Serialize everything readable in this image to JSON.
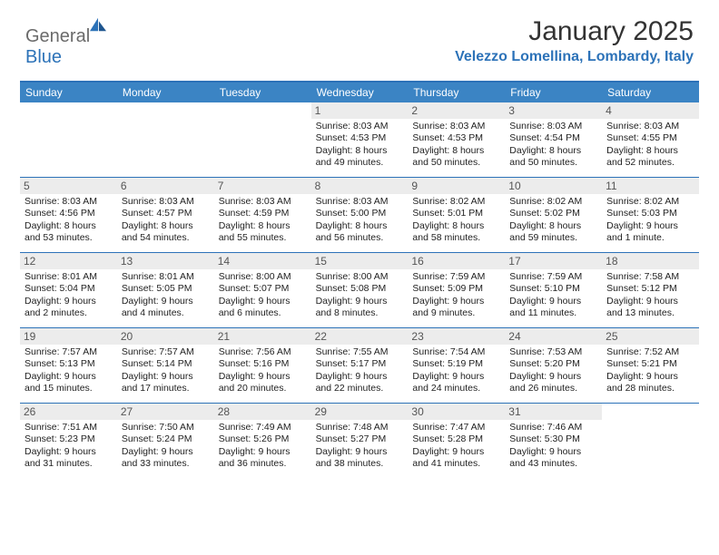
{
  "logo": {
    "general": "General",
    "blue": "Blue"
  },
  "header": {
    "month_title": "January 2025",
    "location": "Velezzo Lomellina, Lombardy, Italy"
  },
  "colors": {
    "brand_blue": "#2c72b8",
    "header_bar": "#3b84c4",
    "daynum_bg": "#ececec",
    "logo_gray": "#6a6a6a"
  },
  "calendar": {
    "day_headers": [
      "Sunday",
      "Monday",
      "Tuesday",
      "Wednesday",
      "Thursday",
      "Friday",
      "Saturday"
    ],
    "first_weekday_index": 3,
    "days": [
      {
        "n": 1,
        "sunrise": "8:03 AM",
        "sunset": "4:53 PM",
        "daylight": "8 hours and 49 minutes."
      },
      {
        "n": 2,
        "sunrise": "8:03 AM",
        "sunset": "4:53 PM",
        "daylight": "8 hours and 50 minutes."
      },
      {
        "n": 3,
        "sunrise": "8:03 AM",
        "sunset": "4:54 PM",
        "daylight": "8 hours and 50 minutes."
      },
      {
        "n": 4,
        "sunrise": "8:03 AM",
        "sunset": "4:55 PM",
        "daylight": "8 hours and 52 minutes."
      },
      {
        "n": 5,
        "sunrise": "8:03 AM",
        "sunset": "4:56 PM",
        "daylight": "8 hours and 53 minutes."
      },
      {
        "n": 6,
        "sunrise": "8:03 AM",
        "sunset": "4:57 PM",
        "daylight": "8 hours and 54 minutes."
      },
      {
        "n": 7,
        "sunrise": "8:03 AM",
        "sunset": "4:59 PM",
        "daylight": "8 hours and 55 minutes."
      },
      {
        "n": 8,
        "sunrise": "8:03 AM",
        "sunset": "5:00 PM",
        "daylight": "8 hours and 56 minutes."
      },
      {
        "n": 9,
        "sunrise": "8:02 AM",
        "sunset": "5:01 PM",
        "daylight": "8 hours and 58 minutes."
      },
      {
        "n": 10,
        "sunrise": "8:02 AM",
        "sunset": "5:02 PM",
        "daylight": "8 hours and 59 minutes."
      },
      {
        "n": 11,
        "sunrise": "8:02 AM",
        "sunset": "5:03 PM",
        "daylight": "9 hours and 1 minute."
      },
      {
        "n": 12,
        "sunrise": "8:01 AM",
        "sunset": "5:04 PM",
        "daylight": "9 hours and 2 minutes."
      },
      {
        "n": 13,
        "sunrise": "8:01 AM",
        "sunset": "5:05 PM",
        "daylight": "9 hours and 4 minutes."
      },
      {
        "n": 14,
        "sunrise": "8:00 AM",
        "sunset": "5:07 PM",
        "daylight": "9 hours and 6 minutes."
      },
      {
        "n": 15,
        "sunrise": "8:00 AM",
        "sunset": "5:08 PM",
        "daylight": "9 hours and 8 minutes."
      },
      {
        "n": 16,
        "sunrise": "7:59 AM",
        "sunset": "5:09 PM",
        "daylight": "9 hours and 9 minutes."
      },
      {
        "n": 17,
        "sunrise": "7:59 AM",
        "sunset": "5:10 PM",
        "daylight": "9 hours and 11 minutes."
      },
      {
        "n": 18,
        "sunrise": "7:58 AM",
        "sunset": "5:12 PM",
        "daylight": "9 hours and 13 minutes."
      },
      {
        "n": 19,
        "sunrise": "7:57 AM",
        "sunset": "5:13 PM",
        "daylight": "9 hours and 15 minutes."
      },
      {
        "n": 20,
        "sunrise": "7:57 AM",
        "sunset": "5:14 PM",
        "daylight": "9 hours and 17 minutes."
      },
      {
        "n": 21,
        "sunrise": "7:56 AM",
        "sunset": "5:16 PM",
        "daylight": "9 hours and 20 minutes."
      },
      {
        "n": 22,
        "sunrise": "7:55 AM",
        "sunset": "5:17 PM",
        "daylight": "9 hours and 22 minutes."
      },
      {
        "n": 23,
        "sunrise": "7:54 AM",
        "sunset": "5:19 PM",
        "daylight": "9 hours and 24 minutes."
      },
      {
        "n": 24,
        "sunrise": "7:53 AM",
        "sunset": "5:20 PM",
        "daylight": "9 hours and 26 minutes."
      },
      {
        "n": 25,
        "sunrise": "7:52 AM",
        "sunset": "5:21 PM",
        "daylight": "9 hours and 28 minutes."
      },
      {
        "n": 26,
        "sunrise": "7:51 AM",
        "sunset": "5:23 PM",
        "daylight": "9 hours and 31 minutes."
      },
      {
        "n": 27,
        "sunrise": "7:50 AM",
        "sunset": "5:24 PM",
        "daylight": "9 hours and 33 minutes."
      },
      {
        "n": 28,
        "sunrise": "7:49 AM",
        "sunset": "5:26 PM",
        "daylight": "9 hours and 36 minutes."
      },
      {
        "n": 29,
        "sunrise": "7:48 AM",
        "sunset": "5:27 PM",
        "daylight": "9 hours and 38 minutes."
      },
      {
        "n": 30,
        "sunrise": "7:47 AM",
        "sunset": "5:28 PM",
        "daylight": "9 hours and 41 minutes."
      },
      {
        "n": 31,
        "sunrise": "7:46 AM",
        "sunset": "5:30 PM",
        "daylight": "9 hours and 43 minutes."
      }
    ],
    "labels": {
      "sunrise": "Sunrise:",
      "sunset": "Sunset:",
      "daylight": "Daylight:"
    }
  }
}
